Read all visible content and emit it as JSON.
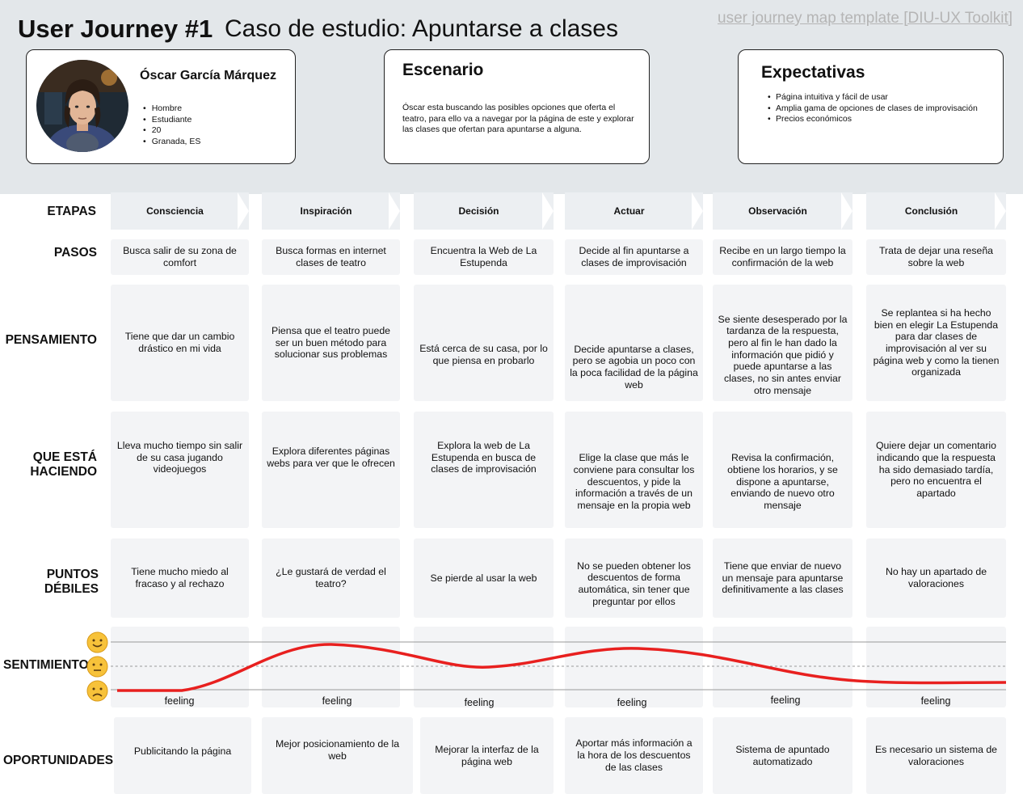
{
  "header": {
    "title": "User Journey #1",
    "subtitle": "Caso de estudio: Apuntarse a clases",
    "template_link": "user journey map template [DIU-UX Toolkit]"
  },
  "persona": {
    "name": "Óscar García Márquez",
    "attributes": [
      "Hombre",
      "Estudiante",
      "20",
      "Granada, ES"
    ]
  },
  "scenario": {
    "title": "Escenario",
    "text": "Óscar esta buscando las posibles opciones que oferta el teatro, para ello va a navegar por la página de este y explorar las clases que ofertan para apuntarse a alguna."
  },
  "expectations": {
    "title": "Expectativas",
    "items": [
      "Página intuitiva y fácil de usar",
      "Amplia gama de opciones de clases de improvisación",
      "Precios económicos"
    ]
  },
  "row_labels": {
    "etapas": "ETAPAS",
    "pasos": "PASOS",
    "pensamiento": "PENSAMIENTO",
    "haciendo_1": "QUE ESTÁ",
    "haciendo_2": "HACIENDO",
    "puntos_1": "PUNTOS",
    "puntos_2": "DÉBILES",
    "sentimiento": "SENTIMIENTO",
    "oportunidades": "OPORTUNIDADES"
  },
  "stages": [
    "Consciencia",
    "Inspiración",
    "Decisión",
    "Actuar",
    "Observación",
    "Conclusión"
  ],
  "pasos": [
    "Busca salir de su zona de comfort",
    "Busca formas en internet clases de teatro",
    "Encuentra la Web de La Estupenda",
    "Decide al fin apuntarse a clases de improvisación",
    "Recibe en un largo tiempo la confirmación de la web",
    "Trata de dejar una reseña sobre la web"
  ],
  "pensamiento": [
    "Tiene que dar un cambio drástico en mi vida",
    "Piensa que el teatro puede ser un buen método para solucionar sus problemas",
    "Está cerca de su casa, por lo que piensa en probarlo",
    "Decide apuntarse a clases, pero se agobia un poco con la poca facilidad de la página web",
    "Se siente desesperado por la tardanza de la respuesta, pero al fin le han dado la información que pidió y puede apuntarse a las clases, no sin antes enviar otro mensaje",
    "Se replantea si ha hecho bien en elegir La Estupenda para dar clases de improvisación al ver su página web y como la tienen organizada"
  ],
  "haciendo": [
    "Lleva mucho tiempo sin salir de su casa jugando videojuegos",
    "Explora diferentes páginas webs para ver que le ofrecen",
    "Explora la web de La Estupenda en busca de clases de improvisación",
    "Elige la clase que más le conviene para consultar los descuentos, y pide la información a través de un mensaje en la propia web",
    "Revisa la confirmación, obtiene los horarios, y se dispone a apuntarse, enviando de nuevo otro mensaje",
    "Quiere dejar un comentario indicando que la respuesta ha sido demasiado tardía, pero no encuentra el apartado"
  ],
  "puntos_debiles": [
    "Tiene mucho miedo al fracaso y al rechazo",
    "¿Le gustará de verdad el teatro?",
    "Se pierde al usar la web",
    "No se pueden obtener los descuentos de forma automática, sin tener que preguntar por ellos",
    "Tiene que enviar de nuevo un mensaje para apuntarse definitivamente a las clases",
    "No hay un apartado de valoraciones"
  ],
  "sentimiento": {
    "labels": [
      "feeling",
      "feeling",
      "feeling",
      "feeling",
      "feeling",
      "feeling"
    ],
    "emojis": [
      "happy-face",
      "neutral-face",
      "sad-face"
    ],
    "curve_color": "#e8201f"
  },
  "oportunidades": [
    "Publicitando la página",
    "Mejor posicionamiento de la web",
    "Mejorar la interfaz de la página web",
    "Aportar más información a la hora de los descuentos de las clases",
    "Sistema de apuntado automatizado",
    "Es necesario un sistema de valoraciones"
  ]
}
